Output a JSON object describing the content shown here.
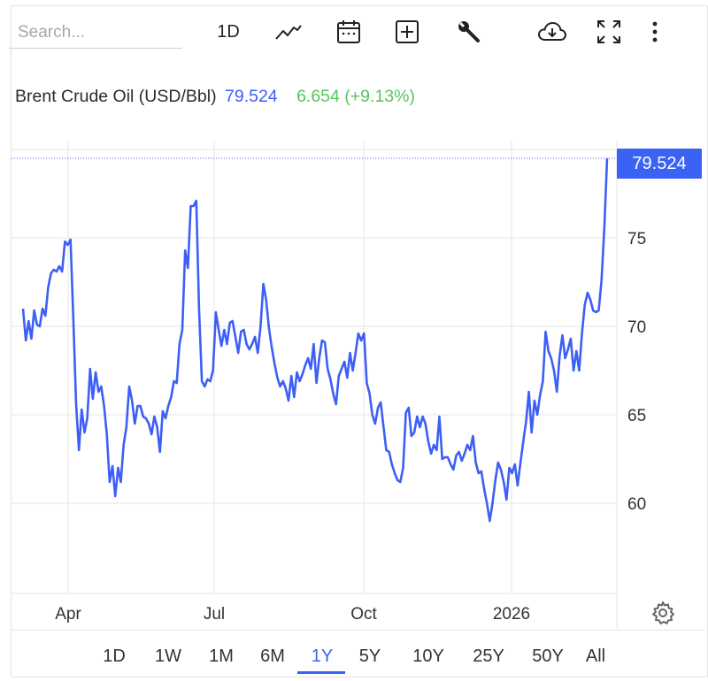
{
  "toolbar": {
    "search_placeholder": "Search...",
    "interval": "1D",
    "icons": [
      "line-chart-icon",
      "calendar-icon",
      "add-indicator-icon",
      "wrench-icon",
      "cloud-download-icon",
      "fullscreen-icon",
      "more-icon"
    ]
  },
  "legend": {
    "title": "Brent Crude Oil (USD/Bbl)",
    "value": "79.524",
    "change": "6.654 (+9.13%)"
  },
  "price_tag": "79.524",
  "range_buttons": [
    "1D",
    "1W",
    "1M",
    "6M",
    "1Y",
    "5Y",
    "10Y",
    "25Y",
    "50Y",
    "All"
  ],
  "active_range": "1Y",
  "colors": {
    "line": "#3d5ff5",
    "accent": "#3b63f3",
    "change_positive": "#5cc25c"
  },
  "chart_data": {
    "type": "line",
    "title": "",
    "xlabel": "",
    "ylabel": "",
    "y_ticks": [
      60,
      65,
      70,
      75
    ],
    "x_ticks": [
      "Apr",
      "Jul",
      "Oct",
      "2026"
    ],
    "ylim": [
      54.9,
      79.9
    ],
    "grid": true,
    "y_axis_side": "right",
    "series": [
      {
        "values": [
          71.0,
          69.2,
          70.3,
          69.3,
          70.9,
          70.1,
          70.0,
          71.0,
          70.6,
          72.2,
          73.0,
          73.2,
          73.1,
          73.4,
          73.1,
          74.8,
          74.6,
          74.9,
          70.5,
          65.6,
          63.0,
          65.3,
          64.0,
          64.8,
          67.6,
          65.9,
          67.4,
          66.3,
          66.6,
          65.5,
          63.9,
          61.2,
          62.1,
          60.4,
          62.0,
          61.2,
          63.3,
          64.3,
          66.6,
          65.8,
          64.5,
          65.5,
          65.5,
          64.9,
          64.8,
          64.5,
          63.9,
          64.9,
          64.3,
          62.9,
          65.2,
          64.8,
          65.5,
          66.0,
          66.9,
          66.8,
          69.0,
          69.8,
          74.3,
          73.3,
          76.8,
          76.8,
          77.1,
          71.0,
          66.9,
          66.6,
          67.0,
          66.9,
          67.5,
          70.8,
          69.8,
          68.9,
          69.8,
          69.0,
          70.2,
          70.3,
          69.4,
          68.5,
          69.7,
          69.8,
          69.0,
          68.7,
          69.0,
          69.4,
          68.5,
          70.0,
          72.4,
          71.5,
          69.9,
          68.8,
          67.9,
          67.1,
          66.6,
          66.9,
          66.5,
          65.8,
          67.2,
          66.0,
          67.4,
          66.9,
          67.3,
          67.8,
          68.2,
          67.6,
          69.0,
          66.8,
          68.2,
          69.2,
          69.1,
          67.6,
          67.0,
          66.2,
          65.6,
          67.2,
          67.6,
          68.0,
          67.1,
          68.5,
          67.5,
          68.5,
          69.6,
          69.2,
          69.6,
          66.8,
          66.2,
          65.0,
          64.5,
          65.4,
          65.7,
          64.3,
          63.0,
          62.9,
          62.2,
          61.7,
          61.3,
          61.2,
          62.0,
          65.1,
          65.4,
          63.8,
          64.0,
          64.9,
          64.3,
          64.9,
          64.5,
          63.5,
          62.8,
          63.3,
          63.0,
          64.9,
          62.5,
          62.6,
          62.6,
          62.2,
          61.9,
          62.7,
          62.9,
          62.4,
          62.8,
          63.3,
          63.0,
          63.8,
          62.3,
          61.7,
          61.8,
          60.8,
          60.0,
          59.0,
          60.0,
          61.3,
          62.3,
          61.9,
          61.2,
          60.2,
          62.0,
          61.7,
          62.2,
          61.0,
          62.3,
          63.5,
          64.6,
          66.3,
          64.0,
          65.8,
          65.0,
          66.1,
          66.9,
          69.7,
          68.6,
          68.2,
          67.5,
          66.3,
          68.3,
          69.5,
          68.2,
          68.7,
          69.3,
          67.5,
          68.6,
          67.5,
          69.6,
          71.2,
          71.9,
          71.5,
          70.9,
          70.8,
          70.9,
          72.6,
          75.5,
          79.5
        ],
        "start": "2025-03-03",
        "end": "2026-03-03"
      }
    ]
  }
}
